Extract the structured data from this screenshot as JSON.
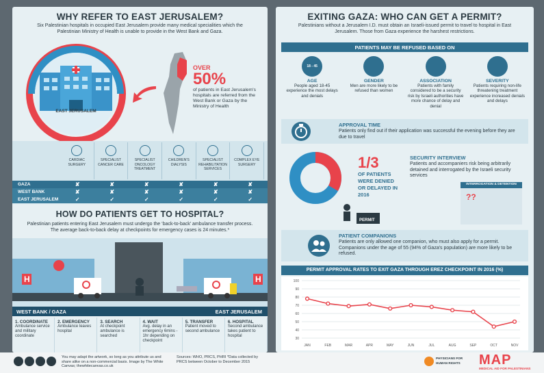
{
  "left": {
    "title": "WHY REFER TO EAST JERUSALEM?",
    "intro": "Six Palestinian hospitals in occupied East Jerusalem provide many medical specialities which the Palestinian Ministry of Health is unable to provide in the West Bank and Gaza.",
    "hospital_label": "EAST JERUSALEM",
    "stat_over": "OVER",
    "stat_value": "50%",
    "stat_text": "of patients in East Jerusalem's hospitals are referred from the West Bank or Gaza by the Ministry of Health",
    "specialties": [
      "CARDIAC SURGERY",
      "SPECIALIST CANCER CARE",
      "SPECIALIST ONCOLOGY TREATMENT",
      "CHILDREN'S DIALYSIS",
      "SPECIALIST REHABILITATION SERVICES",
      "COMPLEX EYE SURGERY"
    ],
    "regions": [
      "GAZA",
      "WEST BANK",
      "EAST JERUSALEM"
    ],
    "marks": [
      [
        "✘",
        "✘",
        "✘",
        "✘",
        "✘",
        "✘"
      ],
      [
        "✘",
        "✘",
        "✘",
        "✘",
        "✘",
        "✘"
      ],
      [
        "✓",
        "✓",
        "✓",
        "✓",
        "✓",
        "✓"
      ]
    ],
    "section2_title": "HOW DO PATIENTS GET TO HOSPITAL?",
    "section2_intro": "Palestinian patients entering East Jerusalem must undergo the ‘back-to-back’ ambulance transfer process. The average back-to-back delay at checkpoints for emergency cases is 24 minutes.*",
    "road_left": "WEST BANK / GAZA",
    "road_right": "EAST JERUSALEM",
    "steps": [
      {
        "title": "1. COORDINATE",
        "text": "Ambulance service and military coordinate"
      },
      {
        "title": "2. EMERGENCY",
        "text": "Ambulance leaves hospital"
      },
      {
        "title": "3. SEARCH",
        "text": "At checkpoint ambulance is searched"
      },
      {
        "title": "4. WAIT",
        "text": "Avg. delay in an emergency 6mins - 1hr depending on checkpoint"
      },
      {
        "title": "5. TRANSFER",
        "text": "Patient moved to second ambulance"
      },
      {
        "title": "6. HOSPITAL",
        "text": "Second ambulance takes patient to hospital"
      }
    ]
  },
  "right": {
    "title": "EXITING GAZA: WHO CAN GET A PERMIT?",
    "intro": "Palestinians without a Jerusalem I.D. must obtain an Israeli-issued permit to travel to hospital in East Jerusalem. Those from Gaza experience the harshest restrictions.",
    "refused_header": "PATIENTS MAY BE REFUSED BASED ON",
    "refused": [
      {
        "title": "AGE",
        "text": "People aged 18-45 experience the most delays and denials",
        "icon_text": "18 - 45"
      },
      {
        "title": "GENDER",
        "text": "Men are more likely to be refused than women"
      },
      {
        "title": "ASSOCIATION",
        "text": "Patients with family considered to be a security risk by Israeli authorities have more chance of delay and denial"
      },
      {
        "title": "SEVERITY",
        "text": "Patients requiring non-life threatening treatment experience increased denials and delays"
      }
    ],
    "approval_title": "APPROVAL TIME",
    "approval_text": "Patients only find out if their application was successful the evening before they are due to travel",
    "fraction": "1/3",
    "fraction_text": "OF PATIENTS WERE DENIED OR DELAYED IN 2016",
    "security_title": "SECURITY INTERVIEW",
    "security_text": "Patients and accompaniers risk being arbitrarily detained and interrogated by the Israeli security services",
    "interrogation_label": "INTERROGATION & DETENTION",
    "permit_label": "PERMIT",
    "companions_title": "PATIENT COMPANIONS",
    "companions_text": "Patients are only allowed one companion, who must also apply for a permit. Companions under the age of 55 (94% of Gaza's population) are more likely to be refused.",
    "chart_title": "PERMIT APPROVAL RATES TO EXIT GAZA THROUGH EREZ CHECKPOINT IN 2016 (%)"
  },
  "chart_data": {
    "type": "line",
    "title": "PERMIT APPROVAL RATES TO EXIT GAZA THROUGH EREZ CHECKPOINT IN 2016 (%)",
    "categories": [
      "JAN",
      "FEB",
      "MAR",
      "APR",
      "MAY",
      "JUN",
      "JUL",
      "AUG",
      "SEP",
      "OCT",
      "NOV"
    ],
    "values": [
      78,
      72,
      69,
      71,
      66,
      70,
      68,
      64,
      62,
      44,
      50
    ],
    "yticks": [
      "100",
      "90",
      "80",
      "70",
      "60",
      "50",
      "40",
      "30"
    ],
    "ylim": [
      30,
      100
    ],
    "color": "#e8434b"
  },
  "footer": {
    "license": "You may adapt the artwork, so long as you attribute us and share alike on a non-commercial basis. Image by The White Canvas; thewhitecanvas.co.uk",
    "sources": "Sources: WHO, PRCS, PHRI *Data collected by PRCS between October to December 2015",
    "phr_text": "PHYSICIANS FOR HUMAN RIGHTS",
    "map_logo": "MAP",
    "map_sub": "MEDICAL AID FOR PALESTINIANS"
  },
  "colors": {
    "accent": "#e8434b",
    "blue": "#2f6f8f",
    "light": "#e7f0f3",
    "navy": "#2b3a42"
  }
}
